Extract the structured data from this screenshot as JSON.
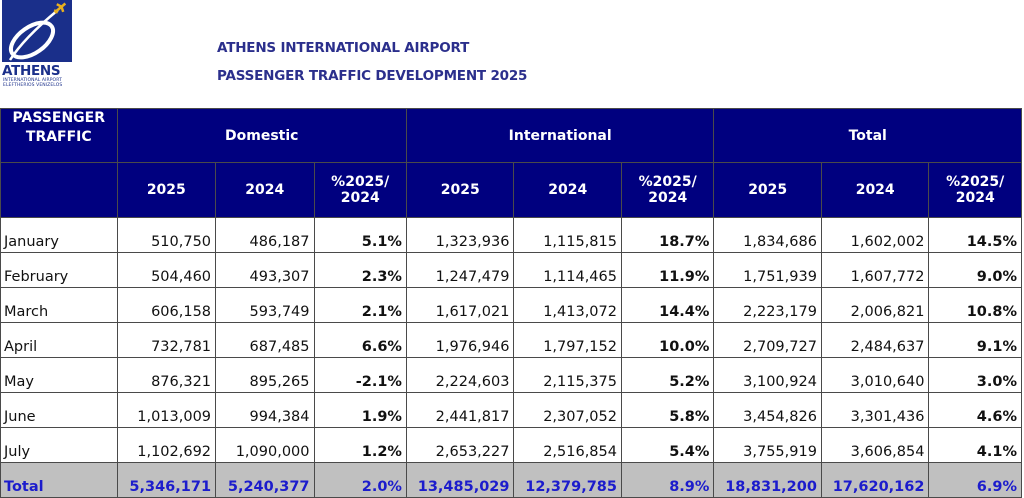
{
  "logo": {
    "icon": "athens-airport-logo-icon",
    "word": "ATHENS",
    "line1": "INTERNATIONAL AIRPORT",
    "line2": "ELEFTHERIOS VENIZELOS"
  },
  "header": {
    "title": "ATHENS INTERNATIONAL AIRPORT",
    "subtitle": "PASSENGER TRAFFIC DEVELOPMENT 2025"
  },
  "colors": {
    "header_bg": "#00007f",
    "total_row_bg": "#c0c0c0",
    "total_text": "#1c1ccc",
    "title_text": "#2b2f8c"
  },
  "table": {
    "corner_label": "PASSENGER TRAFFIC",
    "groups": [
      "Domestic",
      "International",
      "Total"
    ],
    "subheaders": [
      "2025",
      "2024",
      "%2025/ 2024",
      "2025",
      "2024",
      "%2025/ 2024",
      "2025",
      "2024",
      "%2025/ 2024"
    ],
    "rows": [
      {
        "month": "January",
        "dom_2025": "510,750",
        "dom_2024": "486,187",
        "dom_pct": "5.1%",
        "int_2025": "1,323,936",
        "int_2024": "1,115,815",
        "int_pct": "18.7%",
        "tot_2025": "1,834,686",
        "tot_2024": "1,602,002",
        "tot_pct": "14.5%"
      },
      {
        "month": "February",
        "dom_2025": "504,460",
        "dom_2024": "493,307",
        "dom_pct": "2.3%",
        "int_2025": "1,247,479",
        "int_2024": "1,114,465",
        "int_pct": "11.9%",
        "tot_2025": "1,751,939",
        "tot_2024": "1,607,772",
        "tot_pct": "9.0%"
      },
      {
        "month": "March",
        "dom_2025": "606,158",
        "dom_2024": "593,749",
        "dom_pct": "2.1%",
        "int_2025": "1,617,021",
        "int_2024": "1,413,072",
        "int_pct": "14.4%",
        "tot_2025": "2,223,179",
        "tot_2024": "2,006,821",
        "tot_pct": "10.8%"
      },
      {
        "month": "April",
        "dom_2025": "732,781",
        "dom_2024": "687,485",
        "dom_pct": "6.6%",
        "int_2025": "1,976,946",
        "int_2024": "1,797,152",
        "int_pct": "10.0%",
        "tot_2025": "2,709,727",
        "tot_2024": "2,484,637",
        "tot_pct": "9.1%"
      },
      {
        "month": "May",
        "dom_2025": "876,321",
        "dom_2024": "895,265",
        "dom_pct": "-2.1%",
        "int_2025": "2,224,603",
        "int_2024": "2,115,375",
        "int_pct": "5.2%",
        "tot_2025": "3,100,924",
        "tot_2024": "3,010,640",
        "tot_pct": "3.0%"
      },
      {
        "month": "June",
        "dom_2025": "1,013,009",
        "dom_2024": "994,384",
        "dom_pct": "1.9%",
        "int_2025": "2,441,817",
        "int_2024": "2,307,052",
        "int_pct": "5.8%",
        "tot_2025": "3,454,826",
        "tot_2024": "3,301,436",
        "tot_pct": "4.6%"
      },
      {
        "month": "July",
        "dom_2025": "1,102,692",
        "dom_2024": "1,090,000",
        "dom_pct": "1.2%",
        "int_2025": "2,653,227",
        "int_2024": "2,516,854",
        "int_pct": "5.4%",
        "tot_2025": "3,755,919",
        "tot_2024": "3,606,854",
        "tot_pct": "4.1%"
      }
    ],
    "total": {
      "month": "Total",
      "dom_2025": "5,346,171",
      "dom_2024": "5,240,377",
      "dom_pct": "2.0%",
      "int_2025": "13,485,029",
      "int_2024": "12,379,785",
      "int_pct": "8.9%",
      "tot_2025": "18,831,200",
      "tot_2024": "17,620,162",
      "tot_pct": "6.9%"
    }
  }
}
